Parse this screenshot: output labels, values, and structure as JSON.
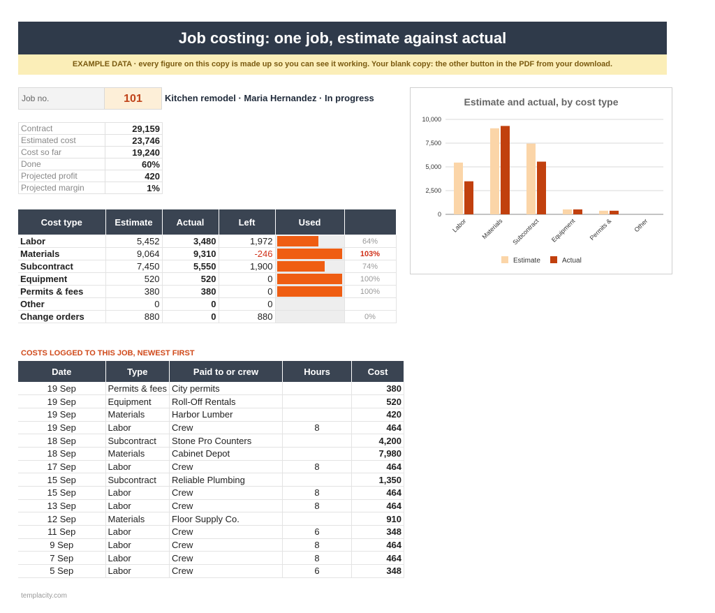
{
  "header": {
    "title": "Job costing: one job, estimate against actual",
    "example_note": "EXAMPLE DATA  ·  every figure on this copy is made up so you can see it working. Your blank copy: the other button in the PDF from your download."
  },
  "job": {
    "label": "Job no.",
    "number": "101",
    "description": "Kitchen remodel  ·  Maria Hernandez  ·  In progress"
  },
  "summary": [
    {
      "label": "Contract",
      "value": "29,159"
    },
    {
      "label": "Estimated cost",
      "value": "23,746"
    },
    {
      "label": "Cost so far",
      "value": "19,240"
    },
    {
      "label": "Done",
      "value": "60%"
    },
    {
      "label": "Projected profit",
      "value": "420"
    },
    {
      "label": "Projected margin",
      "value": "1%"
    }
  ],
  "cost_table": {
    "headers": [
      "Cost type",
      "Estimate",
      "Actual",
      "Left",
      "Used",
      ""
    ],
    "rows": [
      {
        "type": "Labor",
        "estimate": "5,452",
        "actual": "3,480",
        "left": "1,972",
        "used": 0.64,
        "used_label": "64%"
      },
      {
        "type": "Materials",
        "estimate": "9,064",
        "actual": "9,310",
        "left": "-246",
        "used": 1.03,
        "used_label": "103%"
      },
      {
        "type": "Subcontract",
        "estimate": "7,450",
        "actual": "5,550",
        "left": "1,900",
        "used": 0.74,
        "used_label": "74%"
      },
      {
        "type": "Equipment",
        "estimate": "520",
        "actual": "520",
        "left": "0",
        "used": 1.0,
        "used_label": "100%"
      },
      {
        "type": "Permits & fees",
        "estimate": "380",
        "actual": "380",
        "left": "0",
        "used": 1.0,
        "used_label": "100%"
      },
      {
        "type": "Other",
        "estimate": "0",
        "actual": "0",
        "left": "0",
        "used": 0,
        "used_label": ""
      },
      {
        "type": "Change orders",
        "estimate": "880",
        "actual": "0",
        "left": "880",
        "used": 0,
        "used_label": "0%"
      }
    ]
  },
  "log": {
    "title": "COSTS LOGGED TO THIS JOB, NEWEST FIRST",
    "headers": [
      "Date",
      "Type",
      "Paid to or crew",
      "Hours",
      "Cost"
    ],
    "rows": [
      {
        "date": "19 Sep",
        "type": "Permits & fees",
        "paid": "City permits",
        "hours": "",
        "cost": "380"
      },
      {
        "date": "19 Sep",
        "type": "Equipment",
        "paid": "Roll-Off Rentals",
        "hours": "",
        "cost": "520"
      },
      {
        "date": "19 Sep",
        "type": "Materials",
        "paid": "Harbor Lumber",
        "hours": "",
        "cost": "420"
      },
      {
        "date": "19 Sep",
        "type": "Labor",
        "paid": "Crew",
        "hours": "8",
        "cost": "464"
      },
      {
        "date": "18 Sep",
        "type": "Subcontract",
        "paid": "Stone Pro Counters",
        "hours": "",
        "cost": "4,200"
      },
      {
        "date": "18 Sep",
        "type": "Materials",
        "paid": "Cabinet Depot",
        "hours": "",
        "cost": "7,980"
      },
      {
        "date": "17 Sep",
        "type": "Labor",
        "paid": "Crew",
        "hours": "8",
        "cost": "464"
      },
      {
        "date": "15 Sep",
        "type": "Subcontract",
        "paid": "Reliable Plumbing",
        "hours": "",
        "cost": "1,350"
      },
      {
        "date": "15 Sep",
        "type": "Labor",
        "paid": "Crew",
        "hours": "8",
        "cost": "464"
      },
      {
        "date": "13 Sep",
        "type": "Labor",
        "paid": "Crew",
        "hours": "8",
        "cost": "464"
      },
      {
        "date": "12 Sep",
        "type": "Materials",
        "paid": "Floor Supply Co.",
        "hours": "",
        "cost": "910"
      },
      {
        "date": "11 Sep",
        "type": "Labor",
        "paid": "Crew",
        "hours": "6",
        "cost": "348"
      },
      {
        "date": "9 Sep",
        "type": "Labor",
        "paid": "Crew",
        "hours": "8",
        "cost": "464"
      },
      {
        "date": "7 Sep",
        "type": "Labor",
        "paid": "Crew",
        "hours": "8",
        "cost": "464"
      },
      {
        "date": "5 Sep",
        "type": "Labor",
        "paid": "Crew",
        "hours": "6",
        "cost": "348"
      }
    ]
  },
  "footer": "templacity.com",
  "colors": {
    "header_bg": "#2f3a4a",
    "accent": "#ef5d12",
    "estimate": "#fbd5a8",
    "actual": "#c1400e",
    "negative": "#d0321a"
  },
  "chart_data": {
    "type": "bar",
    "title": "Estimate and actual, by cost type",
    "categories": [
      "Labor",
      "Materials",
      "Subcontract",
      "Equipment",
      "Permits &",
      "Other"
    ],
    "series": [
      {
        "name": "Estimate",
        "values": [
          5452,
          9064,
          7450,
          520,
          380,
          0
        ]
      },
      {
        "name": "Actual",
        "values": [
          3480,
          9310,
          5550,
          520,
          380,
          0
        ]
      }
    ],
    "ylim": [
      0,
      10000
    ],
    "yticks": [
      "0",
      "2,500",
      "5,000",
      "7,500",
      "10,000"
    ],
    "ytick_values": [
      0,
      2500,
      5000,
      7500,
      10000
    ],
    "grid": true,
    "legend": "bottom"
  }
}
